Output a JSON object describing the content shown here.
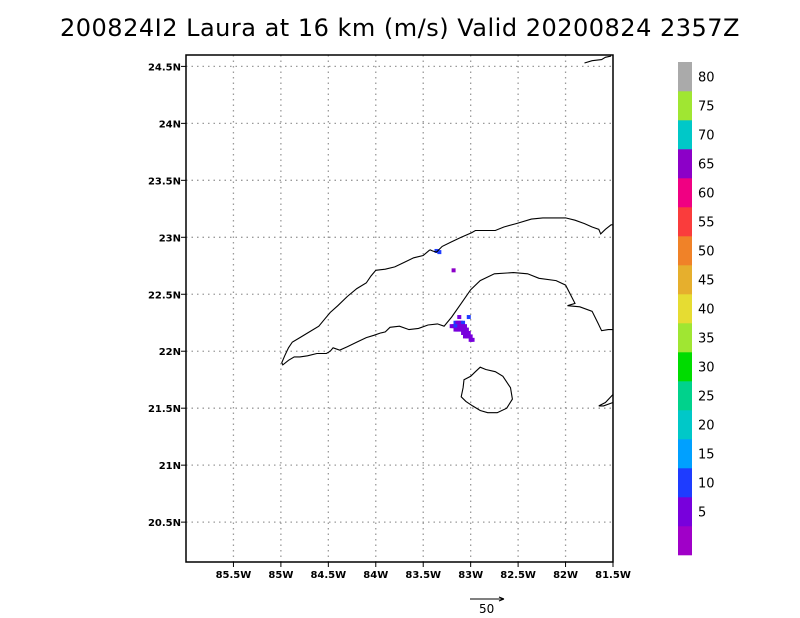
{
  "title": "200824I2 Laura at 16 km (m/s) Valid 20200824 2357Z",
  "chart_data": {
    "type": "heatmap",
    "title": "200824I2 Laura at 16 km (m/s) Valid 20200824 2357Z",
    "units": "m/s",
    "longitude_range": [
      -86.0,
      -81.5
    ],
    "latitude_range": [
      20.15,
      24.6
    ],
    "x_ticks": [
      {
        "lon": -85.5,
        "label": "85.5W"
      },
      {
        "lon": -85.0,
        "label": "85W"
      },
      {
        "lon": -84.5,
        "label": "84.5W"
      },
      {
        "lon": -84.0,
        "label": "84W"
      },
      {
        "lon": -83.5,
        "label": "83.5W"
      },
      {
        "lon": -83.0,
        "label": "83W"
      },
      {
        "lon": -82.5,
        "label": "82.5W"
      },
      {
        "lon": -82.0,
        "label": "82W"
      },
      {
        "lon": -81.5,
        "label": "81.5W"
      }
    ],
    "y_ticks": [
      {
        "lat": 20.5,
        "label": "20.5N"
      },
      {
        "lat": 21.0,
        "label": "21N"
      },
      {
        "lat": 21.5,
        "label": "21.5N"
      },
      {
        "lat": 22.0,
        "label": "22N"
      },
      {
        "lat": 22.5,
        "label": "22.5N"
      },
      {
        "lat": 23.0,
        "label": "23N"
      },
      {
        "lat": 23.5,
        "label": "23.5N"
      },
      {
        "lat": 24.0,
        "label": "24N"
      },
      {
        "lat": 24.5,
        "label": "24.5N"
      }
    ],
    "grid": true,
    "colorbar": {
      "levels": [
        {
          "min": 0,
          "max": 5,
          "color": "#a000c8",
          "label": ""
        },
        {
          "min": 5,
          "max": 10,
          "color": "#7800dc",
          "label": "5"
        },
        {
          "min": 10,
          "max": 15,
          "color": "#1e3cff",
          "label": "10"
        },
        {
          "min": 15,
          "max": 20,
          "color": "#00a0ff",
          "label": "15"
        },
        {
          "min": 20,
          "max": 25,
          "color": "#00c8c8",
          "label": "20"
        },
        {
          "min": 25,
          "max": 30,
          "color": "#00d28c",
          "label": "25"
        },
        {
          "min": 30,
          "max": 35,
          "color": "#00dc00",
          "label": "30"
        },
        {
          "min": 35,
          "max": 40,
          "color": "#a0e632",
          "label": "35"
        },
        {
          "min": 40,
          "max": 45,
          "color": "#e6dc32",
          "label": "40"
        },
        {
          "min": 45,
          "max": 50,
          "color": "#e6af2d",
          "label": "45"
        },
        {
          "min": 50,
          "max": 55,
          "color": "#f08228",
          "label": "50"
        },
        {
          "min": 55,
          "max": 60,
          "color": "#fa3c3c",
          "label": "55"
        },
        {
          "min": 60,
          "max": 65,
          "color": "#f00082",
          "label": "60"
        },
        {
          "min": 65,
          "max": 70,
          "color": "#8c00c8",
          "label": "65"
        },
        {
          "min": 70,
          "max": 75,
          "color": "#00c8c8",
          "label": "70"
        },
        {
          "min": 75,
          "max": 80,
          "color": "#a0e632",
          "label": "75"
        },
        {
          "min": 80,
          "max": 85,
          "color": "#aaaaaa",
          "label": "80"
        }
      ]
    },
    "reference_vector": {
      "value": 50,
      "label": "50"
    },
    "wind_cells": [
      {
        "lon": -83.36,
        "lat": 22.88,
        "value": 12
      },
      {
        "lon": -83.33,
        "lat": 22.87,
        "value": 12
      },
      {
        "lon": -83.18,
        "lat": 22.71,
        "value": 65
      },
      {
        "lon": -83.12,
        "lat": 22.3,
        "value": 8
      },
      {
        "lon": -83.02,
        "lat": 22.3,
        "value": 10
      },
      {
        "lon": -83.16,
        "lat": 22.25,
        "value": 12
      },
      {
        "lon": -83.14,
        "lat": 22.25,
        "value": 8
      },
      {
        "lon": -83.12,
        "lat": 22.25,
        "value": 5
      },
      {
        "lon": -83.1,
        "lat": 22.25,
        "value": 5
      },
      {
        "lon": -83.08,
        "lat": 22.25,
        "value": 12
      },
      {
        "lon": -83.2,
        "lat": 22.22,
        "value": 8
      },
      {
        "lon": -83.18,
        "lat": 22.22,
        "value": 8
      },
      {
        "lon": -83.16,
        "lat": 22.22,
        "value": 10
      },
      {
        "lon": -83.14,
        "lat": 22.22,
        "value": 12
      },
      {
        "lon": -83.12,
        "lat": 22.22,
        "value": 5
      },
      {
        "lon": -83.1,
        "lat": 22.22,
        "value": 8
      },
      {
        "lon": -83.08,
        "lat": 22.22,
        "value": 5
      },
      {
        "lon": -83.06,
        "lat": 22.22,
        "value": 8
      },
      {
        "lon": -83.16,
        "lat": 22.19,
        "value": 8
      },
      {
        "lon": -83.14,
        "lat": 22.19,
        "value": 5
      },
      {
        "lon": -83.12,
        "lat": 22.19,
        "value": 5
      },
      {
        "lon": -83.1,
        "lat": 22.19,
        "value": 8
      },
      {
        "lon": -83.08,
        "lat": 22.19,
        "value": 5
      },
      {
        "lon": -83.06,
        "lat": 22.19,
        "value": 5
      },
      {
        "lon": -83.04,
        "lat": 22.19,
        "value": 8
      },
      {
        "lon": -83.08,
        "lat": 22.16,
        "value": 5
      },
      {
        "lon": -83.06,
        "lat": 22.16,
        "value": 5
      },
      {
        "lon": -83.04,
        "lat": 22.16,
        "value": 8
      },
      {
        "lon": -83.02,
        "lat": 22.16,
        "value": 5
      },
      {
        "lon": -83.06,
        "lat": 22.13,
        "value": 8
      },
      {
        "lon": -83.04,
        "lat": 22.13,
        "value": 5
      },
      {
        "lon": -83.02,
        "lat": 22.13,
        "value": 5
      },
      {
        "lon": -83.0,
        "lat": 22.13,
        "value": 8
      },
      {
        "lon": -83.0,
        "lat": 22.1,
        "value": 5
      },
      {
        "lon": -82.98,
        "lat": 22.1,
        "value": 5
      }
    ],
    "coastlines": [
      [
        [
          -83.43,
          22.89
        ],
        [
          -83.4,
          22.88
        ],
        [
          -83.36,
          22.87
        ],
        [
          -83.3,
          22.92
        ],
        [
          -83.2,
          22.96
        ],
        [
          -83.1,
          23.0
        ],
        [
          -82.99,
          23.04
        ],
        [
          -82.95,
          23.06
        ],
        [
          -82.9,
          23.06
        ],
        [
          -82.83,
          23.06
        ],
        [
          -82.74,
          23.06
        ],
        [
          -82.65,
          23.09
        ],
        [
          -82.52,
          23.12
        ],
        [
          -82.36,
          23.16
        ],
        [
          -82.24,
          23.17
        ],
        [
          -82.1,
          23.17
        ],
        [
          -82.0,
          23.17
        ],
        [
          -81.9,
          23.15
        ],
        [
          -81.8,
          23.12
        ],
        [
          -81.72,
          23.09
        ],
        [
          -81.65,
          23.07
        ],
        [
          -81.63,
          23.03
        ],
        [
          -81.58,
          23.07
        ],
        [
          -81.52,
          23.11
        ],
        [
          -81.5,
          23.11
        ]
      ],
      [
        [
          -83.43,
          22.89
        ],
        [
          -83.5,
          22.84
        ],
        [
          -83.6,
          22.82
        ],
        [
          -83.7,
          22.78
        ],
        [
          -83.8,
          22.74
        ],
        [
          -83.9,
          22.72
        ],
        [
          -84.0,
          22.71
        ],
        [
          -84.05,
          22.66
        ],
        [
          -84.1,
          22.6
        ],
        [
          -84.2,
          22.55
        ],
        [
          -84.3,
          22.48
        ],
        [
          -84.4,
          22.4
        ],
        [
          -84.48,
          22.34
        ],
        [
          -84.54,
          22.28
        ],
        [
          -84.6,
          22.22
        ],
        [
          -84.7,
          22.17
        ],
        [
          -84.8,
          22.12
        ],
        [
          -84.88,
          22.08
        ],
        [
          -84.92,
          22.03
        ],
        [
          -84.96,
          21.96
        ],
        [
          -84.99,
          21.9
        ],
        [
          -84.98,
          21.88
        ],
        [
          -84.92,
          21.92
        ],
        [
          -84.86,
          21.95
        ],
        [
          -84.8,
          21.95
        ],
        [
          -84.72,
          21.96
        ],
        [
          -84.62,
          21.98
        ],
        [
          -84.52,
          21.98
        ],
        [
          -84.48,
          22.0
        ],
        [
          -84.45,
          22.03
        ],
        [
          -84.38,
          22.01
        ],
        [
          -84.3,
          22.04
        ],
        [
          -84.2,
          22.08
        ],
        [
          -84.1,
          22.12
        ],
        [
          -84.02,
          22.14
        ],
        [
          -83.95,
          22.16
        ],
        [
          -83.9,
          22.17
        ],
        [
          -83.85,
          22.21
        ],
        [
          -83.75,
          22.22
        ],
        [
          -83.65,
          22.19
        ],
        [
          -83.55,
          22.2
        ],
        [
          -83.45,
          22.23
        ],
        [
          -83.35,
          22.24
        ],
        [
          -83.28,
          22.22
        ],
        [
          -83.2,
          22.3
        ],
        [
          -83.1,
          22.42
        ],
        [
          -83.0,
          22.54
        ],
        [
          -82.9,
          22.62
        ],
        [
          -82.75,
          22.68
        ],
        [
          -82.55,
          22.69
        ],
        [
          -82.4,
          22.68
        ],
        [
          -82.28,
          22.64
        ],
        [
          -82.1,
          22.62
        ],
        [
          -82.0,
          22.58
        ],
        [
          -81.95,
          22.5
        ],
        [
          -81.9,
          22.42
        ],
        [
          -81.98,
          22.4
        ],
        [
          -81.85,
          22.39
        ],
        [
          -81.72,
          22.35
        ],
        [
          -81.66,
          22.25
        ],
        [
          -81.62,
          22.18
        ],
        [
          -81.55,
          22.19
        ],
        [
          -81.5,
          22.19
        ]
      ],
      [
        [
          -82.95,
          21.82
        ],
        [
          -83.0,
          21.78
        ],
        [
          -83.07,
          21.75
        ],
        [
          -83.08,
          21.68
        ],
        [
          -83.1,
          21.6
        ],
        [
          -83.05,
          21.56
        ],
        [
          -82.98,
          21.52
        ],
        [
          -82.9,
          21.48
        ],
        [
          -82.82,
          21.46
        ],
        [
          -82.72,
          21.46
        ],
        [
          -82.62,
          21.5
        ],
        [
          -82.56,
          21.58
        ],
        [
          -82.58,
          21.68
        ],
        [
          -82.66,
          21.78
        ],
        [
          -82.74,
          21.82
        ],
        [
          -82.84,
          21.84
        ],
        [
          -82.9,
          21.86
        ],
        [
          -82.95,
          21.82
        ]
      ],
      [
        [
          -81.5,
          21.62
        ],
        [
          -81.58,
          21.55
        ],
        [
          -81.65,
          21.52
        ],
        [
          -81.6,
          21.52
        ],
        [
          -81.5,
          21.55
        ]
      ],
      [
        [
          -81.8,
          24.53
        ],
        [
          -81.72,
          24.55
        ],
        [
          -81.62,
          24.56
        ],
        [
          -81.58,
          24.58
        ],
        [
          -81.52,
          24.59
        ]
      ]
    ]
  }
}
